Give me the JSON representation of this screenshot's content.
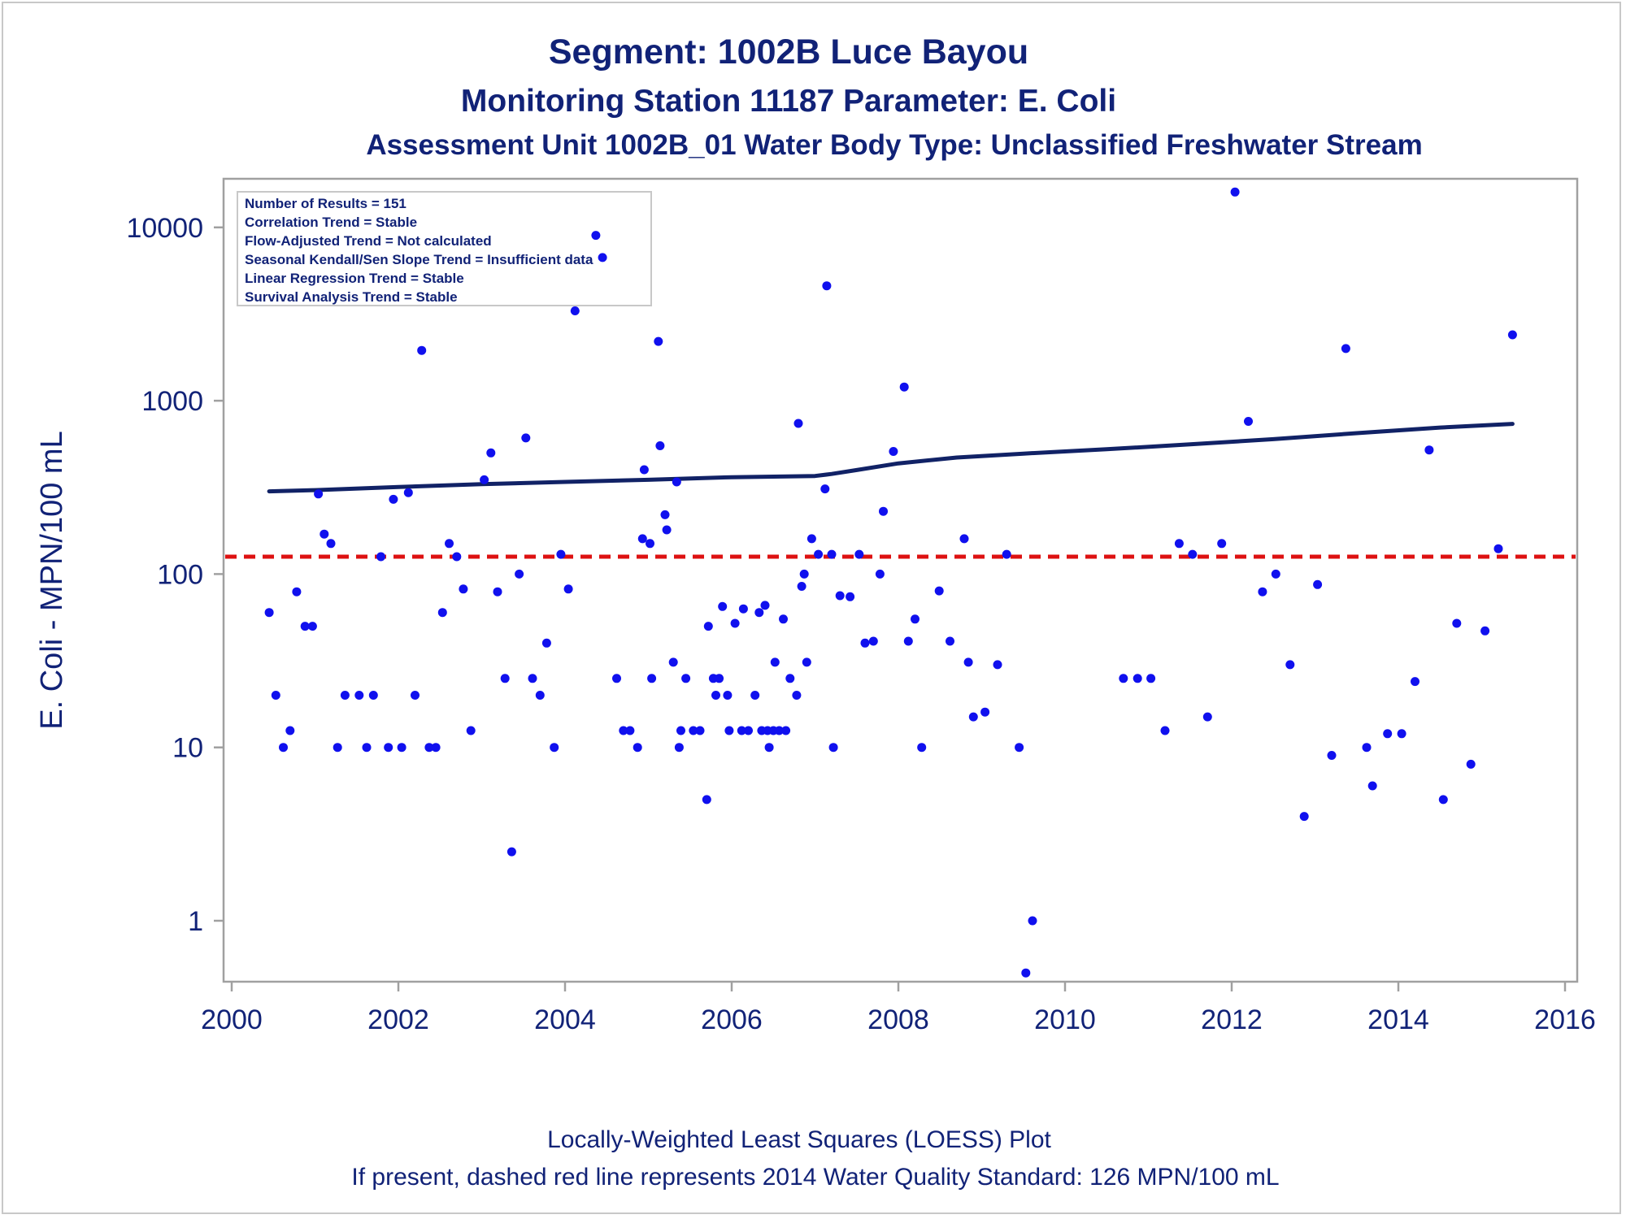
{
  "titles": {
    "line1": "Segment: 1002B  Luce Bayou",
    "line2": "Monitoring Station 11187 Parameter: E. Coli",
    "line3": "Assessment Unit 1002B_01   Water Body Type: Unclassified Freshwater Stream"
  },
  "stats_box": [
    "Number of Results = 151",
    "Correlation Trend = Stable",
    "Flow-Adjusted Trend = Not calculated",
    "Seasonal Kendall/Sen Slope Trend = Insufficient data",
    "Linear Regression Trend = Stable",
    "Survival Analysis Trend = Stable"
  ],
  "footnotes": {
    "line1": "Locally-Weighted Least Squares (LOESS) Plot",
    "line2": "If present, dashed red line represents 2014 Water Quality Standard: 126 MPN/100 mL"
  },
  "chart_data": {
    "type": "scatter",
    "ylabel": "E. Coli - MPN/100 mL",
    "xlabel": "",
    "xlim": [
      2000,
      2016
    ],
    "ylim": [
      0.35,
      18000
    ],
    "y_scale": "log",
    "x_ticks": [
      2000,
      2002,
      2004,
      2006,
      2008,
      2010,
      2012,
      2014,
      2016
    ],
    "y_ticks": [
      1,
      10,
      100,
      1000,
      10000
    ],
    "grid": false,
    "legend": "none",
    "standard_line": {
      "value": 126,
      "color": "#dd1111",
      "style": "dashed"
    },
    "colors": {
      "points": "#1010ee",
      "loess": "#112266",
      "frame": "#a0a0a0",
      "text": "#112277"
    },
    "series": [
      {
        "type": "scatter",
        "points": [
          [
            2000.45,
            60
          ],
          [
            2000.53,
            20
          ],
          [
            2000.62,
            10
          ],
          [
            2000.7,
            12.5
          ],
          [
            2000.78,
            79
          ],
          [
            2000.88,
            50
          ],
          [
            2000.97,
            50
          ],
          [
            2001.04,
            290
          ],
          [
            2001.11,
            170
          ],
          [
            2001.19,
            150
          ],
          [
            2001.27,
            10
          ],
          [
            2001.36,
            20
          ],
          [
            2001.53,
            20
          ],
          [
            2001.62,
            10
          ],
          [
            2001.7,
            20
          ],
          [
            2001.79,
            126
          ],
          [
            2001.88,
            10
          ],
          [
            2001.94,
            270
          ],
          [
            2002.04,
            10
          ],
          [
            2002.12,
            295
          ],
          [
            2002.2,
            20
          ],
          [
            2002.28,
            1950
          ],
          [
            2002.37,
            10
          ],
          [
            2002.45,
            10
          ],
          [
            2002.53,
            60
          ],
          [
            2002.61,
            150
          ],
          [
            2002.7,
            126
          ],
          [
            2002.78,
            82
          ],
          [
            2002.87,
            12.5
          ],
          [
            2003.03,
            350
          ],
          [
            2003.11,
            500
          ],
          [
            2003.19,
            79
          ],
          [
            2003.28,
            25
          ],
          [
            2003.36,
            2.5
          ],
          [
            2003.45,
            100
          ],
          [
            2003.53,
            610
          ],
          [
            2003.61,
            25
          ],
          [
            2003.7,
            20
          ],
          [
            2003.78,
            40
          ],
          [
            2003.87,
            10
          ],
          [
            2003.95,
            130
          ],
          [
            2004.04,
            82
          ],
          [
            2004.12,
            3300
          ],
          [
            2004.37,
            9000
          ],
          [
            2004.45,
            6700
          ],
          [
            2004.62,
            25
          ],
          [
            2004.7,
            12.5
          ],
          [
            2004.78,
            12.5
          ],
          [
            2004.87,
            10
          ],
          [
            2004.93,
            160
          ],
          [
            2004.95,
            400
          ],
          [
            2005.02,
            150
          ],
          [
            2005.04,
            25
          ],
          [
            2005.12,
            2200
          ],
          [
            2005.14,
            550
          ],
          [
            2005.2,
            220
          ],
          [
            2005.22,
            180
          ],
          [
            2005.3,
            31
          ],
          [
            2005.34,
            340
          ],
          [
            2005.37,
            10
          ],
          [
            2005.39,
            12.5
          ],
          [
            2005.45,
            25
          ],
          [
            2005.54,
            12.5
          ],
          [
            2005.62,
            12.5
          ],
          [
            2005.7,
            5
          ],
          [
            2005.72,
            50
          ],
          [
            2005.78,
            25
          ],
          [
            2005.81,
            20
          ],
          [
            2005.85,
            25
          ],
          [
            2005.89,
            65
          ],
          [
            2005.95,
            20
          ],
          [
            2005.97,
            12.5
          ],
          [
            2006.04,
            52
          ],
          [
            2006.12,
            12.5
          ],
          [
            2006.14,
            63
          ],
          [
            2006.2,
            12.5
          ],
          [
            2006.28,
            20
          ],
          [
            2006.33,
            60
          ],
          [
            2006.36,
            12.5
          ],
          [
            2006.4,
            66
          ],
          [
            2006.43,
            12.5
          ],
          [
            2006.45,
            10
          ],
          [
            2006.5,
            12.5
          ],
          [
            2006.52,
            31
          ],
          [
            2006.57,
            12.5
          ],
          [
            2006.62,
            55
          ],
          [
            2006.65,
            12.5
          ],
          [
            2006.7,
            25
          ],
          [
            2006.78,
            20
          ],
          [
            2006.8,
            740
          ],
          [
            2006.84,
            85
          ],
          [
            2006.87,
            100
          ],
          [
            2006.9,
            31
          ],
          [
            2006.96,
            160
          ],
          [
            2007.04,
            130
          ],
          [
            2007.12,
            310
          ],
          [
            2007.14,
            4600
          ],
          [
            2007.2,
            130
          ],
          [
            2007.22,
            10
          ],
          [
            2007.3,
            75
          ],
          [
            2007.42,
            74
          ],
          [
            2007.53,
            130
          ],
          [
            2007.6,
            40
          ],
          [
            2007.7,
            41
          ],
          [
            2007.78,
            100
          ],
          [
            2007.82,
            230
          ],
          [
            2007.94,
            510
          ],
          [
            2008.07,
            1200
          ],
          [
            2008.12,
            41
          ],
          [
            2008.2,
            55
          ],
          [
            2008.28,
            10
          ],
          [
            2008.49,
            80
          ],
          [
            2008.62,
            41
          ],
          [
            2008.79,
            160
          ],
          [
            2008.84,
            31
          ],
          [
            2008.9,
            15
          ],
          [
            2009.04,
            16
          ],
          [
            2009.19,
            30
          ],
          [
            2009.3,
            130
          ],
          [
            2009.45,
            10
          ],
          [
            2009.53,
            0.5
          ],
          [
            2009.61,
            1
          ],
          [
            2010.7,
            25
          ],
          [
            2010.87,
            25
          ],
          [
            2011.03,
            25
          ],
          [
            2011.2,
            12.5
          ],
          [
            2011.37,
            150
          ],
          [
            2011.53,
            130
          ],
          [
            2011.71,
            15
          ],
          [
            2011.88,
            150
          ],
          [
            2012.04,
            16000
          ],
          [
            2012.2,
            760
          ],
          [
            2012.37,
            79
          ],
          [
            2012.53,
            100
          ],
          [
            2012.7,
            30
          ],
          [
            2012.87,
            4
          ],
          [
            2013.03,
            87
          ],
          [
            2013.2,
            9
          ],
          [
            2013.37,
            2000
          ],
          [
            2013.62,
            10
          ],
          [
            2013.69,
            6
          ],
          [
            2013.87,
            12
          ],
          [
            2014.04,
            12
          ],
          [
            2014.2,
            24
          ],
          [
            2014.37,
            520
          ],
          [
            2014.54,
            5
          ],
          [
            2014.7,
            52
          ],
          [
            2014.87,
            8
          ],
          [
            2015.04,
            47
          ],
          [
            2015.2,
            140
          ],
          [
            2015.37,
            2400
          ]
        ]
      },
      {
        "type": "line",
        "name": "",
        "points": [
          [
            2000.45,
            300
          ],
          [
            2001.0,
            305
          ],
          [
            2002.0,
            318
          ],
          [
            2003.0,
            330
          ],
          [
            2004.0,
            340
          ],
          [
            2005.0,
            350
          ],
          [
            2006.0,
            362
          ],
          [
            2007.0,
            368
          ],
          [
            2007.2,
            378
          ],
          [
            2007.5,
            398
          ],
          [
            2008.0,
            435
          ],
          [
            2008.7,
            470
          ],
          [
            2009.5,
            495
          ],
          [
            2010.5,
            525
          ],
          [
            2011.5,
            560
          ],
          [
            2012.5,
            600
          ],
          [
            2013.5,
            650
          ],
          [
            2014.5,
            700
          ],
          [
            2015.37,
            735
          ]
        ]
      }
    ]
  }
}
